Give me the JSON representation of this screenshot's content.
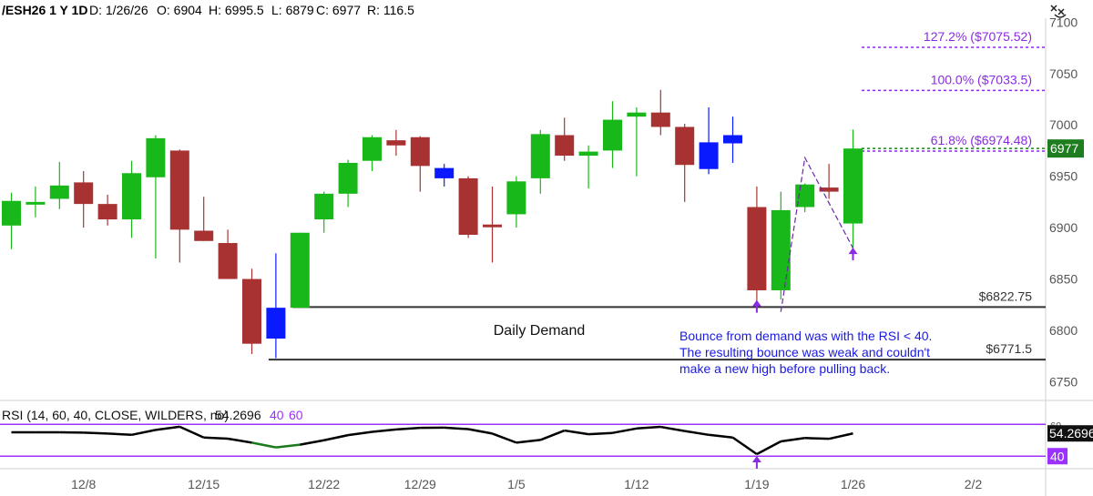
{
  "header": {
    "symbol": "/ESH26 1 Y 1D",
    "date": "D: 1/26/26",
    "open": "O: 6904",
    "high": "H: 6995.5",
    "low": "L: 6879",
    "close": "C: 6977",
    "range": "R: 116.5"
  },
  "colors": {
    "up": "#19b81a",
    "down": "#a83232",
    "blue": "#0a1aff",
    "fib": "#8a2be2",
    "level": "#333333",
    "note": "#1a1ae0",
    "rsi_line": "#000000",
    "rsi_ob": "#c0392b",
    "rsi_os": "#1b7a1b",
    "rsi_band": "#9b30ff",
    "price_tag": "#1e7d1e"
  },
  "chart_data": [
    {
      "type": "candlestick",
      "ylim": [
        6725,
        7110
      ],
      "yticks": [
        "6750",
        "6800",
        "6850",
        "6900",
        "6950",
        "7000",
        "7050",
        "7100"
      ],
      "xticks": [
        {
          "i": 3,
          "label": "12/8"
        },
        {
          "i": 8,
          "label": "12/15"
        },
        {
          "i": 13,
          "label": "12/22"
        },
        {
          "i": 17,
          "label": "12/29"
        },
        {
          "i": 21,
          "label": "1/5"
        },
        {
          "i": 26,
          "label": "1/12"
        },
        {
          "i": 31,
          "label": "1/19"
        },
        {
          "i": 35,
          "label": "1/26"
        },
        {
          "i": 40,
          "label": "2/2"
        }
      ],
      "candles": [
        {
          "o": 6902,
          "h": 6934,
          "l": 6879,
          "c": 6926,
          "col": "up"
        },
        {
          "o": 6925,
          "h": 6940,
          "l": 6910,
          "c": 6925,
          "col": "up"
        },
        {
          "o": 6928,
          "h": 6964,
          "l": 6918,
          "c": 6941,
          "col": "up"
        },
        {
          "o": 6944,
          "h": 6955,
          "l": 6900,
          "c": 6923,
          "col": "down"
        },
        {
          "o": 6923,
          "h": 6932,
          "l": 6902,
          "c": 6908,
          "col": "down"
        },
        {
          "o": 6908,
          "h": 6965,
          "l": 6890,
          "c": 6953,
          "col": "up"
        },
        {
          "o": 6949,
          "h": 6990,
          "l": 6870,
          "c": 6987,
          "col": "up"
        },
        {
          "o": 6975,
          "h": 6976,
          "l": 6866,
          "c": 6898,
          "col": "down"
        },
        {
          "o": 6897,
          "h": 6930,
          "l": 6887,
          "c": 6887,
          "col": "down"
        },
        {
          "o": 6885,
          "h": 6898,
          "l": 6850,
          "c": 6850,
          "col": "down"
        },
        {
          "o": 6850,
          "h": 6860,
          "l": 6777,
          "c": 6787,
          "col": "down"
        },
        {
          "o": 6792,
          "h": 6875,
          "l": 6773,
          "c": 6822,
          "col": "blue"
        },
        {
          "o": 6822,
          "h": 6895,
          "l": 6822,
          "c": 6895,
          "col": "up"
        },
        {
          "o": 6908,
          "h": 6935,
          "l": 6895,
          "c": 6933,
          "col": "up"
        },
        {
          "o": 6933,
          "h": 6966,
          "l": 6920,
          "c": 6963,
          "col": "up"
        },
        {
          "o": 6965,
          "h": 6990,
          "l": 6955,
          "c": 6988,
          "col": "up"
        },
        {
          "o": 6985,
          "h": 6995,
          "l": 6970,
          "c": 6980,
          "col": "down"
        },
        {
          "o": 6988,
          "h": 6989,
          "l": 6935,
          "c": 6960,
          "col": "down"
        },
        {
          "o": 6958,
          "h": 6962,
          "l": 6940,
          "c": 6948,
          "col": "blue"
        },
        {
          "o": 6948,
          "h": 6950,
          "l": 6890,
          "c": 6893,
          "col": "down"
        },
        {
          "o": 6903,
          "h": 6940,
          "l": 6866,
          "c": 6901,
          "col": "down"
        },
        {
          "o": 6913,
          "h": 6950,
          "l": 6900,
          "c": 6945,
          "col": "up"
        },
        {
          "o": 6948,
          "h": 6995,
          "l": 6933,
          "c": 6991,
          "col": "up"
        },
        {
          "o": 6990,
          "h": 7007,
          "l": 6965,
          "c": 6970,
          "col": "down"
        },
        {
          "o": 6970,
          "h": 6980,
          "l": 6938,
          "c": 6974,
          "col": "up"
        },
        {
          "o": 6975,
          "h": 7023,
          "l": 6958,
          "c": 7005,
          "col": "up"
        },
        {
          "o": 7008,
          "h": 7017,
          "l": 6950,
          "c": 7012,
          "col": "up"
        },
        {
          "o": 7012,
          "h": 7034,
          "l": 6990,
          "c": 6998,
          "col": "down"
        },
        {
          "o": 6998,
          "h": 7001,
          "l": 6925,
          "c": 6961,
          "col": "down"
        },
        {
          "o": 6957,
          "h": 7017,
          "l": 6952,
          "c": 6983,
          "col": "blue"
        },
        {
          "o": 6982,
          "h": 7008,
          "l": 6963,
          "c": 6990,
          "col": "blue"
        },
        {
          "o": 6920,
          "h": 6940,
          "l": 6828,
          "c": 6839,
          "col": "down"
        },
        {
          "o": 6839,
          "h": 6935,
          "l": 6830,
          "c": 6917,
          "col": "up"
        },
        {
          "o": 6920,
          "h": 6943,
          "l": 6915,
          "c": 6942,
          "col": "up"
        },
        {
          "o": 6939,
          "h": 6962,
          "l": 6928,
          "c": 6935,
          "col": "down"
        },
        {
          "o": 6904,
          "h": 6995.5,
          "l": 6879,
          "c": 6977,
          "col": "up"
        }
      ],
      "fib_levels": [
        {
          "value": 7075.52,
          "label": "127.2% ($7075.52)"
        },
        {
          "value": 7033.5,
          "label": "100.0% ($7033.5)"
        },
        {
          "value": 6974.48,
          "label": "61.8% ($6974.48)"
        }
      ],
      "levels": [
        {
          "value": 6822.75,
          "label": "$6822.75",
          "from": 12
        },
        {
          "value": 6771.5,
          "label": "$6771.5",
          "from": 11
        }
      ],
      "zone_label": "Daily Demand",
      "price_tag": "6977",
      "note_lines": [
        "Bounce from demand was with the RSI < 40.",
        "The resulting bounce was weak and couldn't",
        "make a new high before pulling back."
      ],
      "zigzag": [
        {
          "i": 32,
          "v": 6818
        },
        {
          "i": 33,
          "v": 6968
        },
        {
          "i": 35,
          "v": 6880
        }
      ],
      "arrows": [
        {
          "i": 31,
          "v": 6826
        },
        {
          "i": 35,
          "v": 6877
        }
      ]
    },
    {
      "type": "line",
      "title": "RSI (14, 60, 40, CLOSE, WILDERS, no)",
      "value_text": "54.2696",
      "level_a": "40",
      "level_b": "60",
      "ylim": [
        35,
        63
      ],
      "bands": [
        60,
        40
      ],
      "band_labels": [
        "60",
        "40"
      ],
      "last_tag": "54.2696",
      "values": [
        55,
        55,
        55,
        54.8,
        54.2,
        53.4,
        56.5,
        58.5,
        51.7,
        51,
        48.5,
        45.5,
        47.2,
        50,
        53.2,
        55.3,
        56.8,
        57.8,
        57.9,
        57,
        54.2,
        48.5,
        50.2,
        56.1,
        53.8,
        54.6,
        57.4,
        58.4,
        55.8,
        53.4,
        51.7,
        41.3,
        49.3,
        51.4,
        50.9,
        54.3
      ],
      "arrow_i": 31
    }
  ]
}
